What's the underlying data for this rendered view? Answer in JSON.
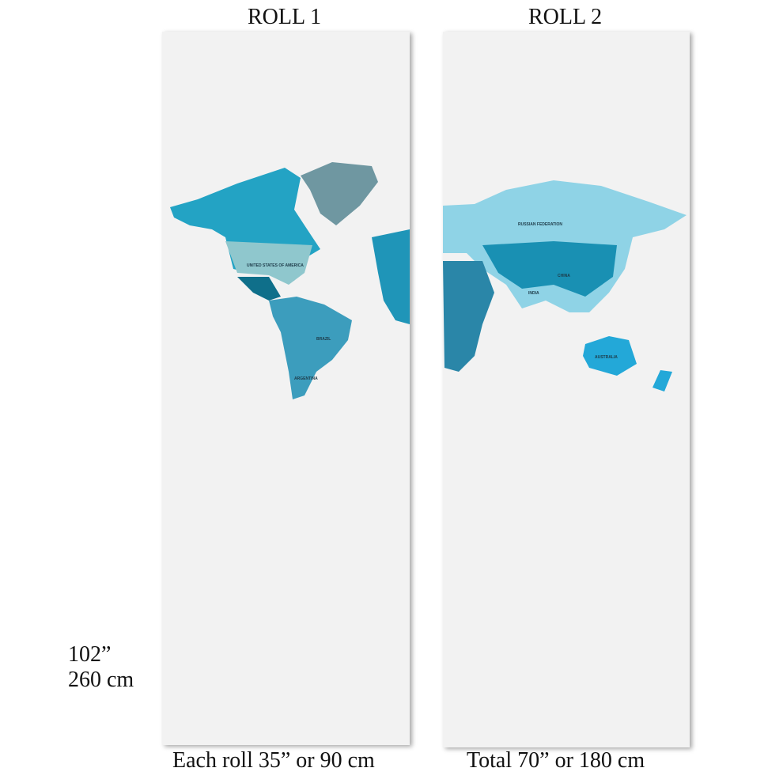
{
  "header": {
    "roll1": "ROLL 1",
    "roll2": "ROLL 2"
  },
  "height": {
    "inches": "102”",
    "cm": "260 cm"
  },
  "footer": {
    "roll1": "Each roll 35” or 90 cm",
    "roll2": "Total 70” or 180 cm"
  },
  "map": {
    "labels": [
      "UNITED STATES OF AMERICA",
      "BRAZIL",
      "ARGENTINA",
      "RUSSIAN FEDERATION",
      "CHINA",
      "INDIA",
      "AUSTRALIA"
    ]
  }
}
